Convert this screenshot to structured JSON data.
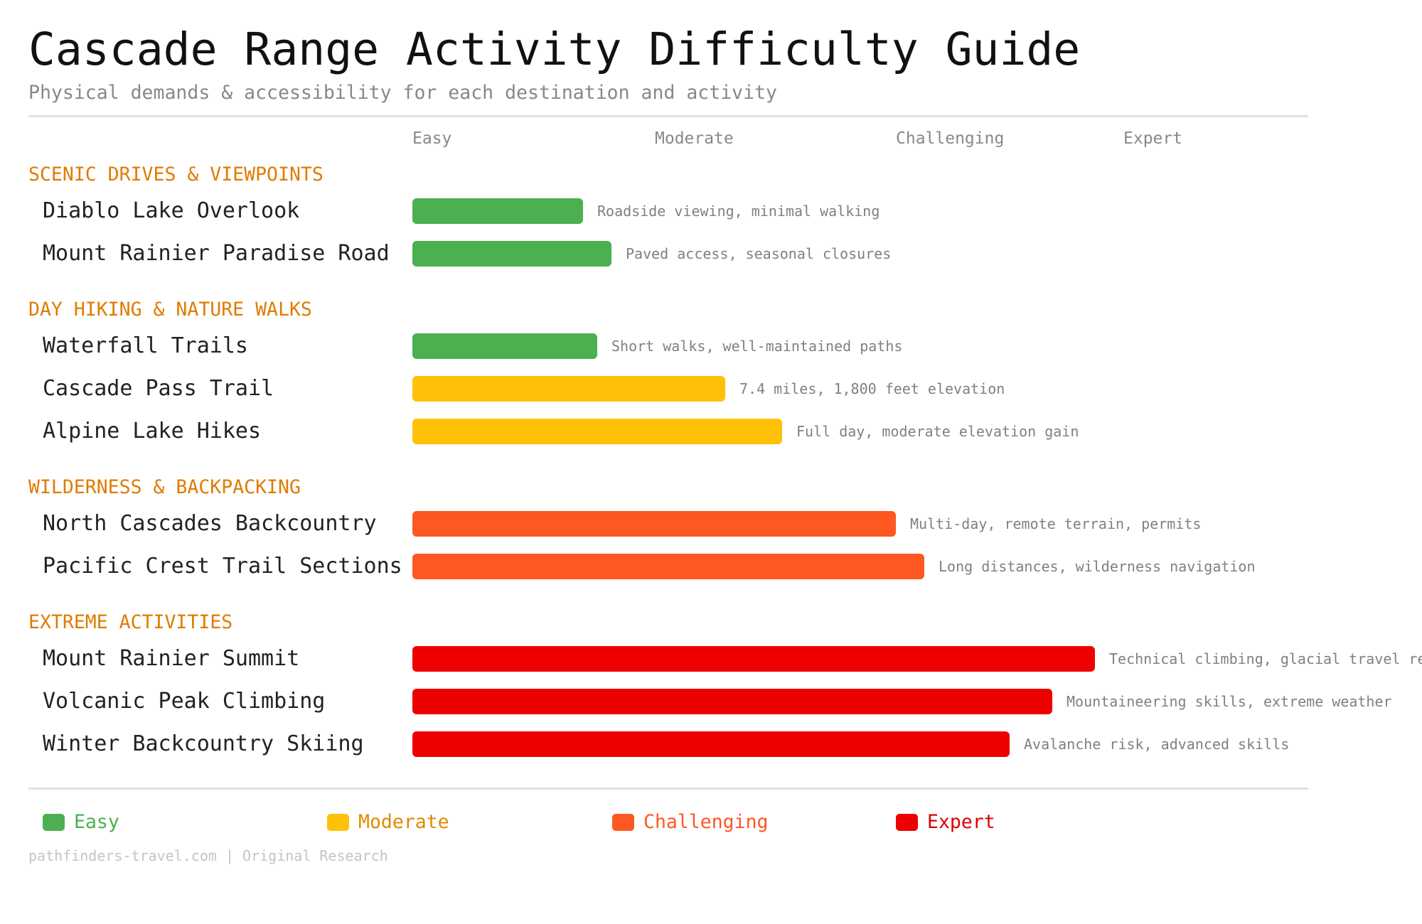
{
  "title": "Cascade Range Activity Difficulty Guide",
  "subtitle": "Physical demands & accessibility for each destination and activity",
  "colors": {
    "Easy": "#4CAF50",
    "Moderate": "#FFC107",
    "Challenging": "#FF5722",
    "Expert": "#EE0000",
    "section": "#E07B00"
  },
  "legend_text_colors": {
    "Easy": "#4CAF50",
    "Moderate": "#E08A00",
    "Challenging": "#FF5722",
    "Expert": "#DD0000"
  },
  "chart_data": {
    "type": "bar",
    "orientation": "horizontal",
    "x_scale_labels": [
      "Easy",
      "Moderate",
      "Challenging",
      "Expert"
    ],
    "xlim": [
      0,
      100
    ],
    "value_unit": "percent of difficulty scale",
    "sections": [
      {
        "title": "SCENIC DRIVES & VIEWPOINTS",
        "items": [
          {
            "label": "Diablo Lake Overlook",
            "value": 24,
            "level": "Easy",
            "note": "Roadside viewing, minimal walking"
          },
          {
            "label": "Mount Rainier Paradise Road",
            "value": 28,
            "level": "Easy",
            "note": "Paved access, seasonal closures"
          }
        ]
      },
      {
        "title": "DAY HIKING & NATURE WALKS",
        "items": [
          {
            "label": "Waterfall Trails",
            "value": 26,
            "level": "Easy",
            "note": "Short walks, well-maintained paths"
          },
          {
            "label": "Cascade Pass Trail",
            "value": 44,
            "level": "Moderate",
            "note": "7.4 miles, 1,800 feet elevation"
          },
          {
            "label": "Alpine Lake Hikes",
            "value": 52,
            "level": "Moderate",
            "note": "Full day, moderate elevation gain"
          }
        ]
      },
      {
        "title": "WILDERNESS & BACKPACKING",
        "items": [
          {
            "label": "North Cascades Backcountry",
            "value": 68,
            "level": "Challenging",
            "note": "Multi-day, remote terrain, permits"
          },
          {
            "label": "Pacific Crest Trail Sections",
            "value": 72,
            "level": "Challenging",
            "note": "Long distances, wilderness navigation"
          }
        ]
      },
      {
        "title": "EXTREME ACTIVITIES",
        "items": [
          {
            "label": "Mount Rainier Summit",
            "value": 96,
            "level": "Expert",
            "note": "Technical climbing, glacial travel re"
          },
          {
            "label": "Volcanic Peak Climbing",
            "value": 90,
            "level": "Expert",
            "note": "Mountaineering skills, extreme weather"
          },
          {
            "label": "Winter Backcountry Skiing",
            "value": 84,
            "level": "Expert",
            "note": "Avalanche risk, advanced skills"
          }
        ]
      }
    ],
    "legend": [
      "Easy",
      "Moderate",
      "Challenging",
      "Expert"
    ],
    "legend_placement": "bottom",
    "grid": false
  },
  "footer": "pathfinders-travel.com | Original Research"
}
